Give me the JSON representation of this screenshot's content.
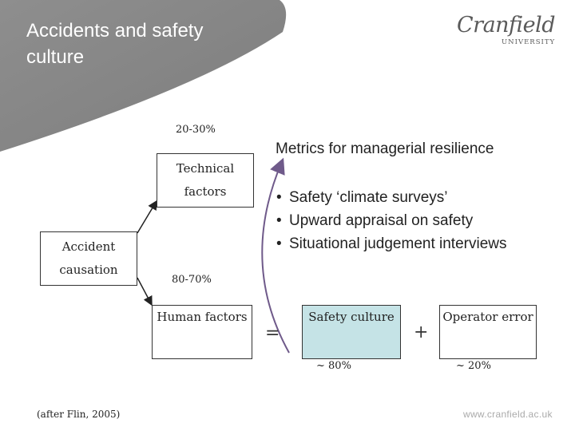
{
  "header": {
    "title": "Accidents and safety culture",
    "logo_main": "Cranfield",
    "logo_sub": "UNIVERSITY"
  },
  "diagram": {
    "technical_percent": "20-30%",
    "technical_box": "Technical factors",
    "accident_box": "Accident causation",
    "human_percent": "80-70%",
    "human_box": "Human factors",
    "equals": "=",
    "safety_box": "Safety culture",
    "plus": "+",
    "operator_box": "Operator error",
    "safety_percent": "~ 80%",
    "operator_percent": "~ 20%"
  },
  "metrics": {
    "title": "Metrics for managerial resilience",
    "items": [
      "Safety ‘climate surveys’",
      "Upward appraisal on safety",
      "Situational judgement interviews"
    ],
    "bullet": "•"
  },
  "footer": {
    "citation": "(after Flin, 2005)",
    "url": "www.cranfield.ac.uk"
  },
  "colors": {
    "banner": "#8c8c8c",
    "safety_fill": "#c5e3e6",
    "arrow": "#6f5a8a"
  }
}
